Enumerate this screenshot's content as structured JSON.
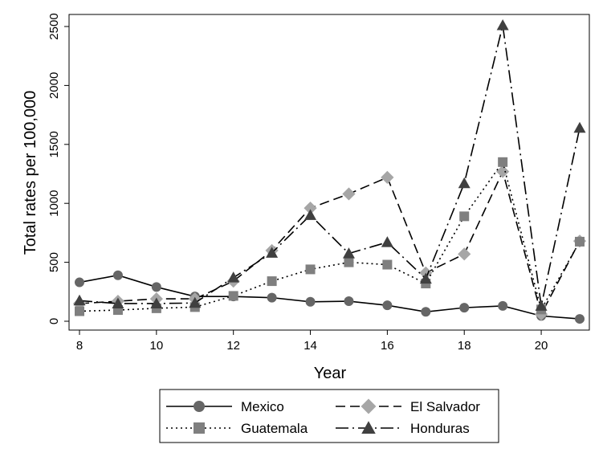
{
  "chart_data": {
    "type": "line",
    "xlabel": "Year",
    "ylabel": "Total  rates per 100,000",
    "xlim": [
      8,
      21
    ],
    "ylim": [
      0,
      2500
    ],
    "x_ticks": [
      8,
      10,
      12,
      14,
      16,
      18,
      20
    ],
    "y_ticks": [
      0,
      500,
      1000,
      1500,
      2000,
      2500
    ],
    "x": [
      8,
      9,
      10,
      11,
      12,
      13,
      14,
      15,
      16,
      17,
      18,
      19,
      20,
      21
    ],
    "grid": false,
    "legend_position": "bottom",
    "series": [
      {
        "name": "Mexico",
        "values": [
          330,
          390,
          290,
          210,
          210,
          200,
          165,
          170,
          135,
          80,
          115,
          130,
          45,
          20
        ],
        "color": "#666666",
        "marker": "circle",
        "line_style": "solid"
      },
      {
        "name": "El Salvador",
        "values": [
          150,
          170,
          190,
          190,
          340,
          600,
          960,
          1080,
          1220,
          410,
          570,
          1270,
          60,
          680
        ],
        "color": "#a6a6a6",
        "marker": "diamond",
        "line_style": "dashed"
      },
      {
        "name": "Guatemala",
        "values": [
          85,
          95,
          110,
          120,
          215,
          340,
          440,
          500,
          480,
          320,
          890,
          1350,
          100,
          675
        ],
        "color": "#7f7f7f",
        "marker": "square",
        "line_style": "dotted"
      },
      {
        "name": "Honduras",
        "values": [
          175,
          150,
          150,
          155,
          370,
          580,
          900,
          575,
          670,
          360,
          1170,
          2510,
          130,
          1640
        ],
        "color": "#404040",
        "marker": "triangle",
        "line_style": "longdash-dot"
      }
    ]
  }
}
